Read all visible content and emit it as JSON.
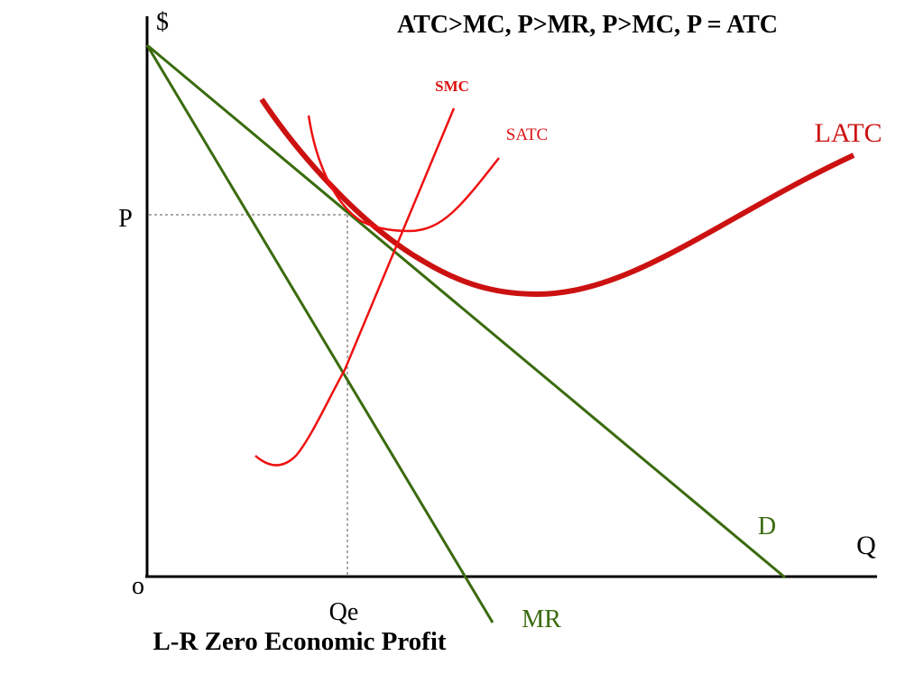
{
  "title": "ATC>MC,  P>MR,  P>MC, P = ATC",
  "caption": "L-R Zero Economic Profit",
  "axes": {
    "y_label": "$",
    "x_label": "Q",
    "origin_label": "o",
    "price_label": "P",
    "quantity_label": "Qe"
  },
  "curves": {
    "smc": "SMC",
    "satc": "SATC",
    "latc": "LATC",
    "demand": "D",
    "mr": "MR"
  },
  "colors": {
    "cost_curves": "#dd1111",
    "latc": "#cc1111",
    "revenue_curves": "#3a6b0e",
    "axes": "#000000",
    "guides": "#555555"
  }
}
